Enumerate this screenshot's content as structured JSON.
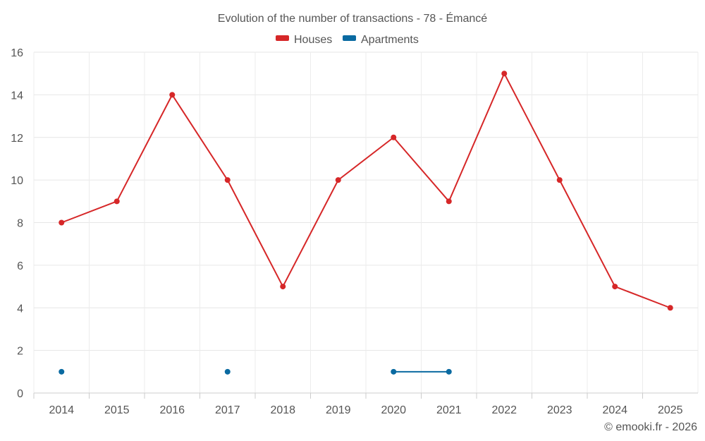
{
  "chart_data": {
    "type": "line",
    "title": "Evolution of the number of transactions - 78 - Émancé",
    "categories": [
      "2014",
      "2015",
      "2016",
      "2017",
      "2018",
      "2019",
      "2020",
      "2021",
      "2022",
      "2023",
      "2024",
      "2025"
    ],
    "series": [
      {
        "name": "Houses",
        "color": "#d62728",
        "values": [
          8,
          9,
          14,
          10,
          5,
          10,
          12,
          9,
          15,
          10,
          5,
          4
        ]
      },
      {
        "name": "Apartments",
        "color": "#0a6aa1",
        "values": [
          1,
          null,
          null,
          1,
          null,
          null,
          1,
          1,
          null,
          null,
          null,
          null
        ]
      }
    ],
    "ylim": [
      0,
      16
    ],
    "yticks": [
      0,
      2,
      4,
      6,
      8,
      10,
      12,
      14,
      16
    ],
    "grid": true,
    "legend": "top-center",
    "xlabel": "",
    "ylabel": ""
  },
  "credit": "© emooki.fr - 2026"
}
